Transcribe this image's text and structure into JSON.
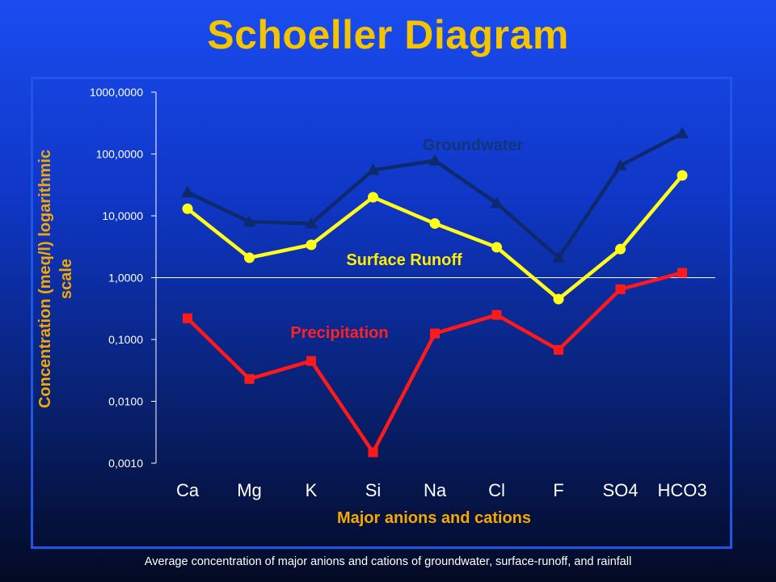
{
  "slide": {
    "title": "Schoeller Diagram",
    "caption": "Average concentration of major anions and cations of groundwater, surface-runoff, and rainfall"
  },
  "colors": {
    "title": "#f5c400",
    "axis_label": "#f5a800",
    "groundwater": "#0e2a6e",
    "surface_runoff": "#ffff1a",
    "precipitation": "#ff1a1a",
    "text": "#ffffff",
    "groundwater_label": "#13347a",
    "surface_runoff_label": "#ffee00",
    "precipitation_label": "#ff2020"
  },
  "chart_data": {
    "type": "line",
    "title": "",
    "xlabel": "Major anions and cations",
    "ylabel_lines": [
      "Concentration (meq/l) logarithmic",
      "scale"
    ],
    "y_scale": "log",
    "ylim": [
      0.001,
      1000
    ],
    "y_ticks": [
      1000,
      100,
      10,
      1,
      0.1,
      0.01,
      0.001
    ],
    "y_tick_labels": [
      "1000,0000",
      "100,0000",
      "10,0000",
      "1,0000",
      "0,1000",
      "0,0100",
      "0,0010"
    ],
    "gridlines": [
      1
    ],
    "categories": [
      "Ca",
      "Mg",
      "K",
      "Si",
      "Na",
      "Cl",
      "F",
      "SO4",
      "HCO3"
    ],
    "series": [
      {
        "name": "Groundwater",
        "marker": "triangle",
        "color": "#0e2a6e",
        "values": [
          24,
          8,
          7.5,
          55,
          78,
          16,
          2.1,
          65,
          215
        ]
      },
      {
        "name": "Surface Runoff",
        "marker": "circle",
        "color": "#ffff1a",
        "values": [
          13,
          2.1,
          3.4,
          20,
          7.5,
          3.1,
          0.45,
          2.9,
          45
        ]
      },
      {
        "name": "Precipitation",
        "marker": "square",
        "color": "#ff1a1a",
        "values": [
          0.22,
          0.023,
          0.045,
          0.0015,
          0.125,
          0.25,
          0.068,
          0.65,
          1.2
        ]
      }
    ]
  }
}
